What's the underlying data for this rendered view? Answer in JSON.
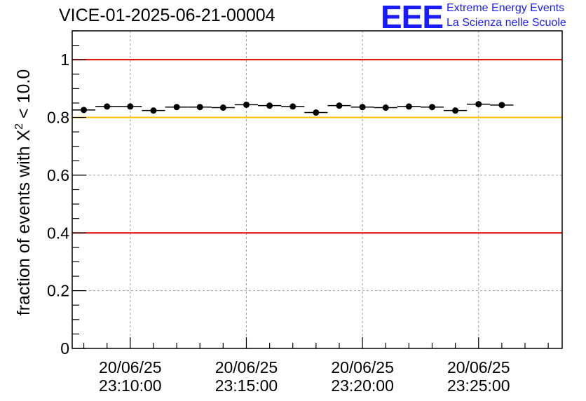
{
  "title": "VICE-01-2025-06-21-00004",
  "logo": {
    "mark": "EEE",
    "line1": "Extreme Energy Events",
    "line2": "La Scienza nelle Scuole"
  },
  "colors": {
    "upper_ref": "#e00000",
    "warn_ref": "#ffc000",
    "lower_ref": "#e00000",
    "logo": "#1a1aff"
  },
  "chart_data": {
    "type": "scatter",
    "title": "VICE-01-2025-06-21-00004",
    "xlabel": "",
    "ylabel_prefix": "fraction of events with ",
    "ylabel_symbol": "X",
    "ylabel_sup": "2",
    "ylabel_suffix": " < 10.0",
    "ylim": [
      0,
      1.1
    ],
    "yticks": [
      {
        "value": 0,
        "label": "0"
      },
      {
        "value": 0.2,
        "label": "0.2"
      },
      {
        "value": 0.4,
        "label": "0.4"
      },
      {
        "value": 0.6,
        "label": "0.6"
      },
      {
        "value": 0.8,
        "label": "0.8"
      },
      {
        "value": 1,
        "label": "1"
      }
    ],
    "xlim_minutes": [
      -1.5,
      19.6
    ],
    "xticks": [
      {
        "value": 1,
        "date": "20/06/25",
        "time": "23:10:00"
      },
      {
        "value": 6,
        "date": "20/06/25",
        "time": "23:15:00"
      },
      {
        "value": 11,
        "date": "20/06/25",
        "time": "23:20:00"
      },
      {
        "value": 16,
        "date": "20/06/25",
        "time": "23:25:00"
      }
    ],
    "x_minor_step": 1,
    "bin_halfwidth_minutes": 0.5,
    "reference_lines": [
      {
        "name": "upper-limit",
        "y": 1.0,
        "color": "#e00000"
      },
      {
        "name": "warning-level",
        "y": 0.8,
        "color": "#ffc000"
      },
      {
        "name": "lower-limit",
        "y": 0.4,
        "color": "#e00000"
      }
    ],
    "x": [
      -1,
      0,
      1,
      2,
      3,
      4,
      5,
      6,
      7,
      8,
      9,
      10,
      11,
      12,
      13,
      14,
      15,
      16,
      17
    ],
    "y": [
      0.826,
      0.838,
      0.838,
      0.824,
      0.836,
      0.836,
      0.834,
      0.844,
      0.841,
      0.838,
      0.817,
      0.841,
      0.836,
      0.834,
      0.838,
      0.836,
      0.824,
      0.846,
      0.843
    ],
    "grid": true
  }
}
